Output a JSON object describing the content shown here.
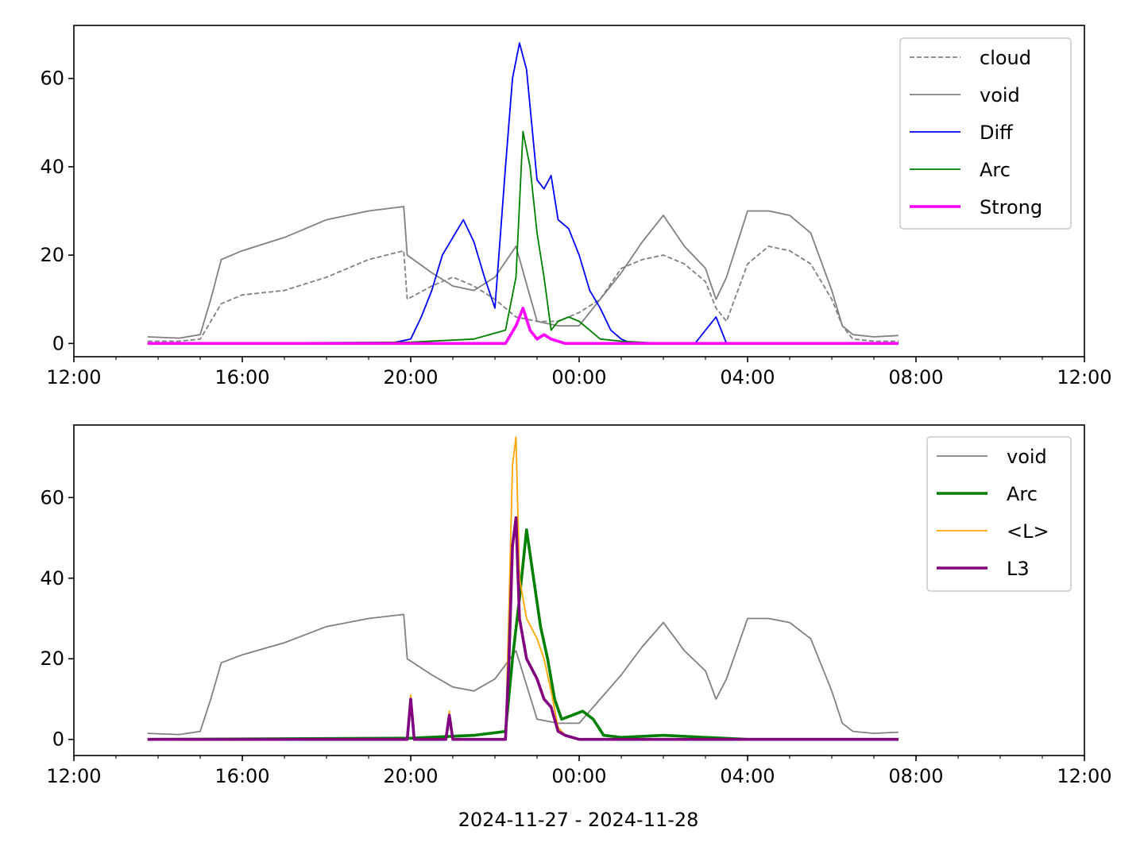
{
  "chart_data": [
    {
      "type": "line",
      "x_range": [
        "2024-11-27 12:00",
        "2024-11-28 12:00"
      ],
      "x_ticks": [
        "12:00",
        "16:00",
        "20:00",
        "00:00",
        "04:00",
        "08:00",
        "12:00"
      ],
      "ylim": [
        -3,
        72
      ],
      "y_ticks": [
        0,
        20,
        40,
        60
      ],
      "legend_position": "top-right",
      "grid": false,
      "series": [
        {
          "name": "cloud",
          "color": "#808080",
          "style": "dashed",
          "x": [
            "2024-11-27 13:45",
            "2024-11-27 14:30",
            "2024-11-27 15:00",
            "2024-11-27 15:15",
            "2024-11-27 15:30",
            "2024-11-27 16:00",
            "2024-11-27 17:00",
            "2024-11-27 18:00",
            "2024-11-27 19:00",
            "2024-11-27 19:50",
            "2024-11-27 19:55",
            "2024-11-27 20:30",
            "2024-11-27 21:00",
            "2024-11-27 21:30",
            "2024-11-27 22:00",
            "2024-11-27 22:30",
            "2024-11-27 23:00",
            "2024-11-27 23:30",
            "2024-11-28 00:00",
            "2024-11-28 00:30",
            "2024-11-28 01:00",
            "2024-11-28 01:30",
            "2024-11-28 02:00",
            "2024-11-28 02:30",
            "2024-11-28 03:00",
            "2024-11-28 03:15",
            "2024-11-28 03:30",
            "2024-11-28 04:00",
            "2024-11-28 04:30",
            "2024-11-28 05:00",
            "2024-11-28 05:30",
            "2024-11-28 06:00",
            "2024-11-28 06:15",
            "2024-11-28 06:30",
            "2024-11-28 07:00",
            "2024-11-28 07:35"
          ],
          "y": [
            0.5,
            0.5,
            1,
            5,
            9,
            11,
            12,
            15,
            19,
            21,
            10,
            13,
            15,
            13,
            10,
            6,
            5,
            5,
            7,
            10,
            17,
            19,
            20,
            18,
            14,
            8,
            5,
            18,
            22,
            21,
            18,
            10,
            4,
            1,
            0.5,
            0.5
          ]
        },
        {
          "name": "void",
          "color": "#808080",
          "style": "solid",
          "x": [
            "2024-11-27 13:45",
            "2024-11-27 14:30",
            "2024-11-27 15:00",
            "2024-11-27 15:15",
            "2024-11-27 15:30",
            "2024-11-27 16:00",
            "2024-11-27 17:00",
            "2024-11-27 18:00",
            "2024-11-27 19:00",
            "2024-11-27 19:50",
            "2024-11-27 19:55",
            "2024-11-27 20:30",
            "2024-11-27 21:00",
            "2024-11-27 21:30",
            "2024-11-27 22:00",
            "2024-11-27 22:30",
            "2024-11-27 23:00",
            "2024-11-27 23:30",
            "2024-11-28 00:00",
            "2024-11-28 00:30",
            "2024-11-28 01:00",
            "2024-11-28 01:30",
            "2024-11-28 02:00",
            "2024-11-28 02:30",
            "2024-11-28 03:00",
            "2024-11-28 03:15",
            "2024-11-28 03:30",
            "2024-11-28 04:00",
            "2024-11-28 04:30",
            "2024-11-28 05:00",
            "2024-11-28 05:30",
            "2024-11-28 06:00",
            "2024-11-28 06:15",
            "2024-11-28 06:30",
            "2024-11-28 07:00",
            "2024-11-28 07:35"
          ],
          "y": [
            1.5,
            1.2,
            2,
            10,
            19,
            21,
            24,
            28,
            30,
            31,
            20,
            16,
            13,
            12,
            15,
            22,
            5,
            4,
            4,
            10,
            16,
            23,
            29,
            22,
            17,
            10,
            15,
            30,
            30,
            29,
            25,
            12,
            4,
            2,
            1.5,
            1.8
          ]
        },
        {
          "name": "Diff",
          "color": "#0000ff",
          "style": "solid",
          "x": [
            "2024-11-27 13:45",
            "2024-11-27 19:30",
            "2024-11-27 20:00",
            "2024-11-27 20:15",
            "2024-11-27 20:30",
            "2024-11-27 20:45",
            "2024-11-27 21:00",
            "2024-11-27 21:15",
            "2024-11-27 21:30",
            "2024-11-27 21:45",
            "2024-11-27 22:00",
            "2024-11-27 22:15",
            "2024-11-27 22:25",
            "2024-11-27 22:35",
            "2024-11-27 22:45",
            "2024-11-27 23:00",
            "2024-11-27 23:10",
            "2024-11-27 23:20",
            "2024-11-27 23:30",
            "2024-11-27 23:45",
            "2024-11-28 00:00",
            "2024-11-28 00:15",
            "2024-11-28 00:30",
            "2024-11-28 00:45",
            "2024-11-28 01:00",
            "2024-11-28 01:15",
            "2024-11-28 02:45",
            "2024-11-28 03:15",
            "2024-11-28 03:30",
            "2024-11-28 07:35"
          ],
          "y": [
            0,
            0,
            1,
            6,
            12,
            20,
            24,
            28,
            23,
            15,
            8,
            40,
            60,
            68,
            62,
            37,
            35,
            38,
            28,
            26,
            20,
            12,
            8,
            3,
            1,
            0,
            0,
            6,
            0,
            0
          ]
        },
        {
          "name": "Arc",
          "color": "#008000",
          "style": "solid",
          "x": [
            "2024-11-27 13:45",
            "2024-11-27 20:00",
            "2024-11-27 21:30",
            "2024-11-27 22:15",
            "2024-11-27 22:30",
            "2024-11-27 22:40",
            "2024-11-27 22:50",
            "2024-11-27 23:00",
            "2024-11-27 23:10",
            "2024-11-27 23:20",
            "2024-11-27 23:30",
            "2024-11-27 23:45",
            "2024-11-28 00:00",
            "2024-11-28 00:15",
            "2024-11-28 00:30",
            "2024-11-28 01:00",
            "2024-11-28 02:00",
            "2024-11-28 07:35"
          ],
          "y": [
            0,
            0.3,
            1,
            3,
            15,
            48,
            40,
            25,
            15,
            3,
            5,
            6,
            5,
            3,
            1,
            0.5,
            0,
            0
          ]
        },
        {
          "name": "Strong",
          "color": "#ff00ff",
          "style": "solid",
          "x": [
            "2024-11-27 13:45",
            "2024-11-27 22:15",
            "2024-11-27 22:30",
            "2024-11-27 22:40",
            "2024-11-27 22:50",
            "2024-11-27 23:00",
            "2024-11-27 23:10",
            "2024-11-27 23:20",
            "2024-11-27 23:40",
            "2024-11-28 07:35"
          ],
          "y": [
            0,
            0,
            4,
            8,
            3,
            1,
            2,
            1,
            0,
            0
          ]
        }
      ]
    },
    {
      "type": "line",
      "xlabel": "2024-11-27 - 2024-11-28",
      "x_range": [
        "2024-11-27 12:00",
        "2024-11-28 12:00"
      ],
      "x_ticks": [
        "12:00",
        "16:00",
        "20:00",
        "00:00",
        "04:00",
        "08:00",
        "12:00"
      ],
      "ylim": [
        -4,
        78
      ],
      "y_ticks": [
        0,
        20,
        40,
        60
      ],
      "legend_position": "top-right",
      "grid": false,
      "series": [
        {
          "name": "void",
          "color": "#808080",
          "style": "solid",
          "x": [
            "2024-11-27 13:45",
            "2024-11-27 14:30",
            "2024-11-27 15:00",
            "2024-11-27 15:15",
            "2024-11-27 15:30",
            "2024-11-27 16:00",
            "2024-11-27 17:00",
            "2024-11-27 18:00",
            "2024-11-27 19:00",
            "2024-11-27 19:50",
            "2024-11-27 19:55",
            "2024-11-27 20:30",
            "2024-11-27 21:00",
            "2024-11-27 21:30",
            "2024-11-27 22:00",
            "2024-11-27 22:30",
            "2024-11-27 23:00",
            "2024-11-27 23:30",
            "2024-11-28 00:00",
            "2024-11-28 00:30",
            "2024-11-28 01:00",
            "2024-11-28 01:30",
            "2024-11-28 02:00",
            "2024-11-28 02:30",
            "2024-11-28 03:00",
            "2024-11-28 03:15",
            "2024-11-28 03:30",
            "2024-11-28 04:00",
            "2024-11-28 04:30",
            "2024-11-28 05:00",
            "2024-11-28 05:30",
            "2024-11-28 06:00",
            "2024-11-28 06:15",
            "2024-11-28 06:30",
            "2024-11-28 07:00",
            "2024-11-28 07:35"
          ],
          "y": [
            1.5,
            1.2,
            2,
            10,
            19,
            21,
            24,
            28,
            30,
            31,
            20,
            16,
            13,
            12,
            15,
            22,
            5,
            4,
            4,
            10,
            16,
            23,
            29,
            22,
            17,
            10,
            15,
            30,
            30,
            29,
            25,
            12,
            4,
            2,
            1.5,
            1.8
          ]
        },
        {
          "name": "Arc",
          "color": "#008000",
          "style": "solid",
          "x": [
            "2024-11-27 13:45",
            "2024-11-27 20:00",
            "2024-11-27 21:30",
            "2024-11-27 22:15",
            "2024-11-27 22:25",
            "2024-11-27 22:35",
            "2024-11-27 22:45",
            "2024-11-27 22:55",
            "2024-11-27 23:05",
            "2024-11-27 23:15",
            "2024-11-27 23:25",
            "2024-11-27 23:35",
            "2024-11-27 23:50",
            "2024-11-28 00:05",
            "2024-11-28 00:20",
            "2024-11-28 00:35",
            "2024-11-28 01:00",
            "2024-11-28 02:00",
            "2024-11-28 04:00",
            "2024-11-28 07:35"
          ],
          "y": [
            0,
            0.3,
            1,
            2,
            20,
            35,
            52,
            40,
            28,
            20,
            10,
            5,
            6,
            7,
            5,
            1,
            0.5,
            1,
            0,
            0
          ]
        },
        {
          "name": "<L>",
          "color": "#ffa500",
          "style": "solid",
          "x": [
            "2024-11-27 13:45",
            "2024-11-27 19:55",
            "2024-11-27 20:00",
            "2024-11-27 20:05",
            "2024-11-27 20:50",
            "2024-11-27 20:55",
            "2024-11-27 21:00",
            "2024-11-27 22:15",
            "2024-11-27 22:20",
            "2024-11-27 22:25",
            "2024-11-27 22:30",
            "2024-11-27 22:35",
            "2024-11-27 22:45",
            "2024-11-27 23:00",
            "2024-11-27 23:10",
            "2024-11-27 23:20",
            "2024-11-27 23:30",
            "2024-11-27 23:40",
            "2024-11-28 00:00",
            "2024-11-28 07:35"
          ],
          "y": [
            0,
            0,
            11,
            0,
            0,
            7,
            0,
            0,
            33,
            68,
            75,
            40,
            30,
            25,
            20,
            12,
            3,
            1,
            0,
            0
          ]
        },
        {
          "name": "L3",
          "color": "#800080",
          "style": "solid",
          "x": [
            "2024-11-27 13:45",
            "2024-11-27 19:55",
            "2024-11-27 20:00",
            "2024-11-27 20:05",
            "2024-11-27 20:50",
            "2024-11-27 20:55",
            "2024-11-27 21:00",
            "2024-11-27 22:15",
            "2024-11-27 22:20",
            "2024-11-27 22:25",
            "2024-11-27 22:30",
            "2024-11-27 22:35",
            "2024-11-27 22:45",
            "2024-11-27 23:00",
            "2024-11-27 23:10",
            "2024-11-27 23:20",
            "2024-11-27 23:30",
            "2024-11-27 23:40",
            "2024-11-28 00:00",
            "2024-11-28 07:35"
          ],
          "y": [
            0,
            0,
            10,
            0,
            0,
            6,
            0,
            0,
            20,
            48,
            55,
            30,
            20,
            15,
            10,
            8,
            2,
            1,
            0,
            0
          ]
        }
      ]
    }
  ]
}
